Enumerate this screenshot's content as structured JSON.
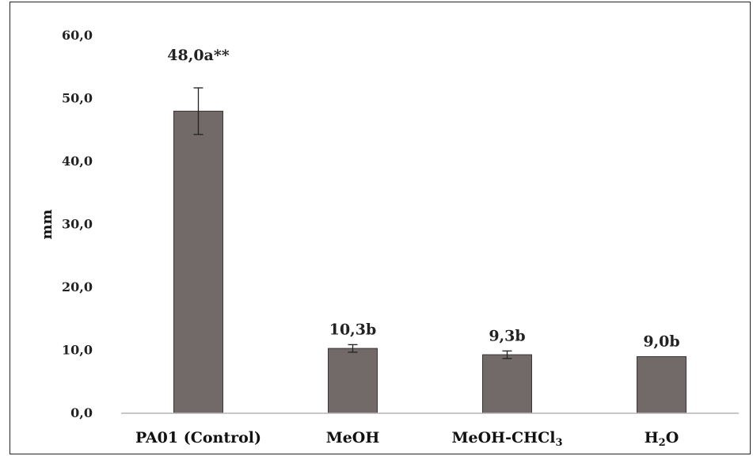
{
  "chart_data": {
    "type": "bar",
    "title": "",
    "xlabel": "",
    "ylabel": "mm",
    "ylim": [
      0,
      60
    ],
    "yticks": [
      "0,0",
      "10,0",
      "20,0",
      "30,0",
      "40,0",
      "50,0",
      "60,0"
    ],
    "grid": false,
    "legend": "none",
    "categories": [
      "PA01 (Control)",
      "MeOH",
      "MeOH-CHCl",
      "HO"
    ],
    "category_subscripts": [
      "",
      "",
      "3",
      "2"
    ],
    "category_suffixes": [
      "",
      "",
      "",
      "O"
    ],
    "category_display": [
      {
        "main": "PA01 (Control)",
        "sub": "",
        "after": ""
      },
      {
        "main": "MeOH",
        "sub": "",
        "after": ""
      },
      {
        "main": "MeOH-CHCl",
        "sub": "3",
        "after": ""
      },
      {
        "main": "H",
        "sub": "2",
        "after": "O"
      }
    ],
    "values": [
      48.0,
      10.3,
      9.3,
      9.0
    ],
    "error": [
      3.7,
      0.6,
      0.6,
      0.0
    ],
    "data_labels": [
      "48,0a**",
      "10,3b",
      "9,3b",
      "9,0b"
    ],
    "bar_color": "#716a68",
    "bar_edge_color": "#3a3433"
  }
}
